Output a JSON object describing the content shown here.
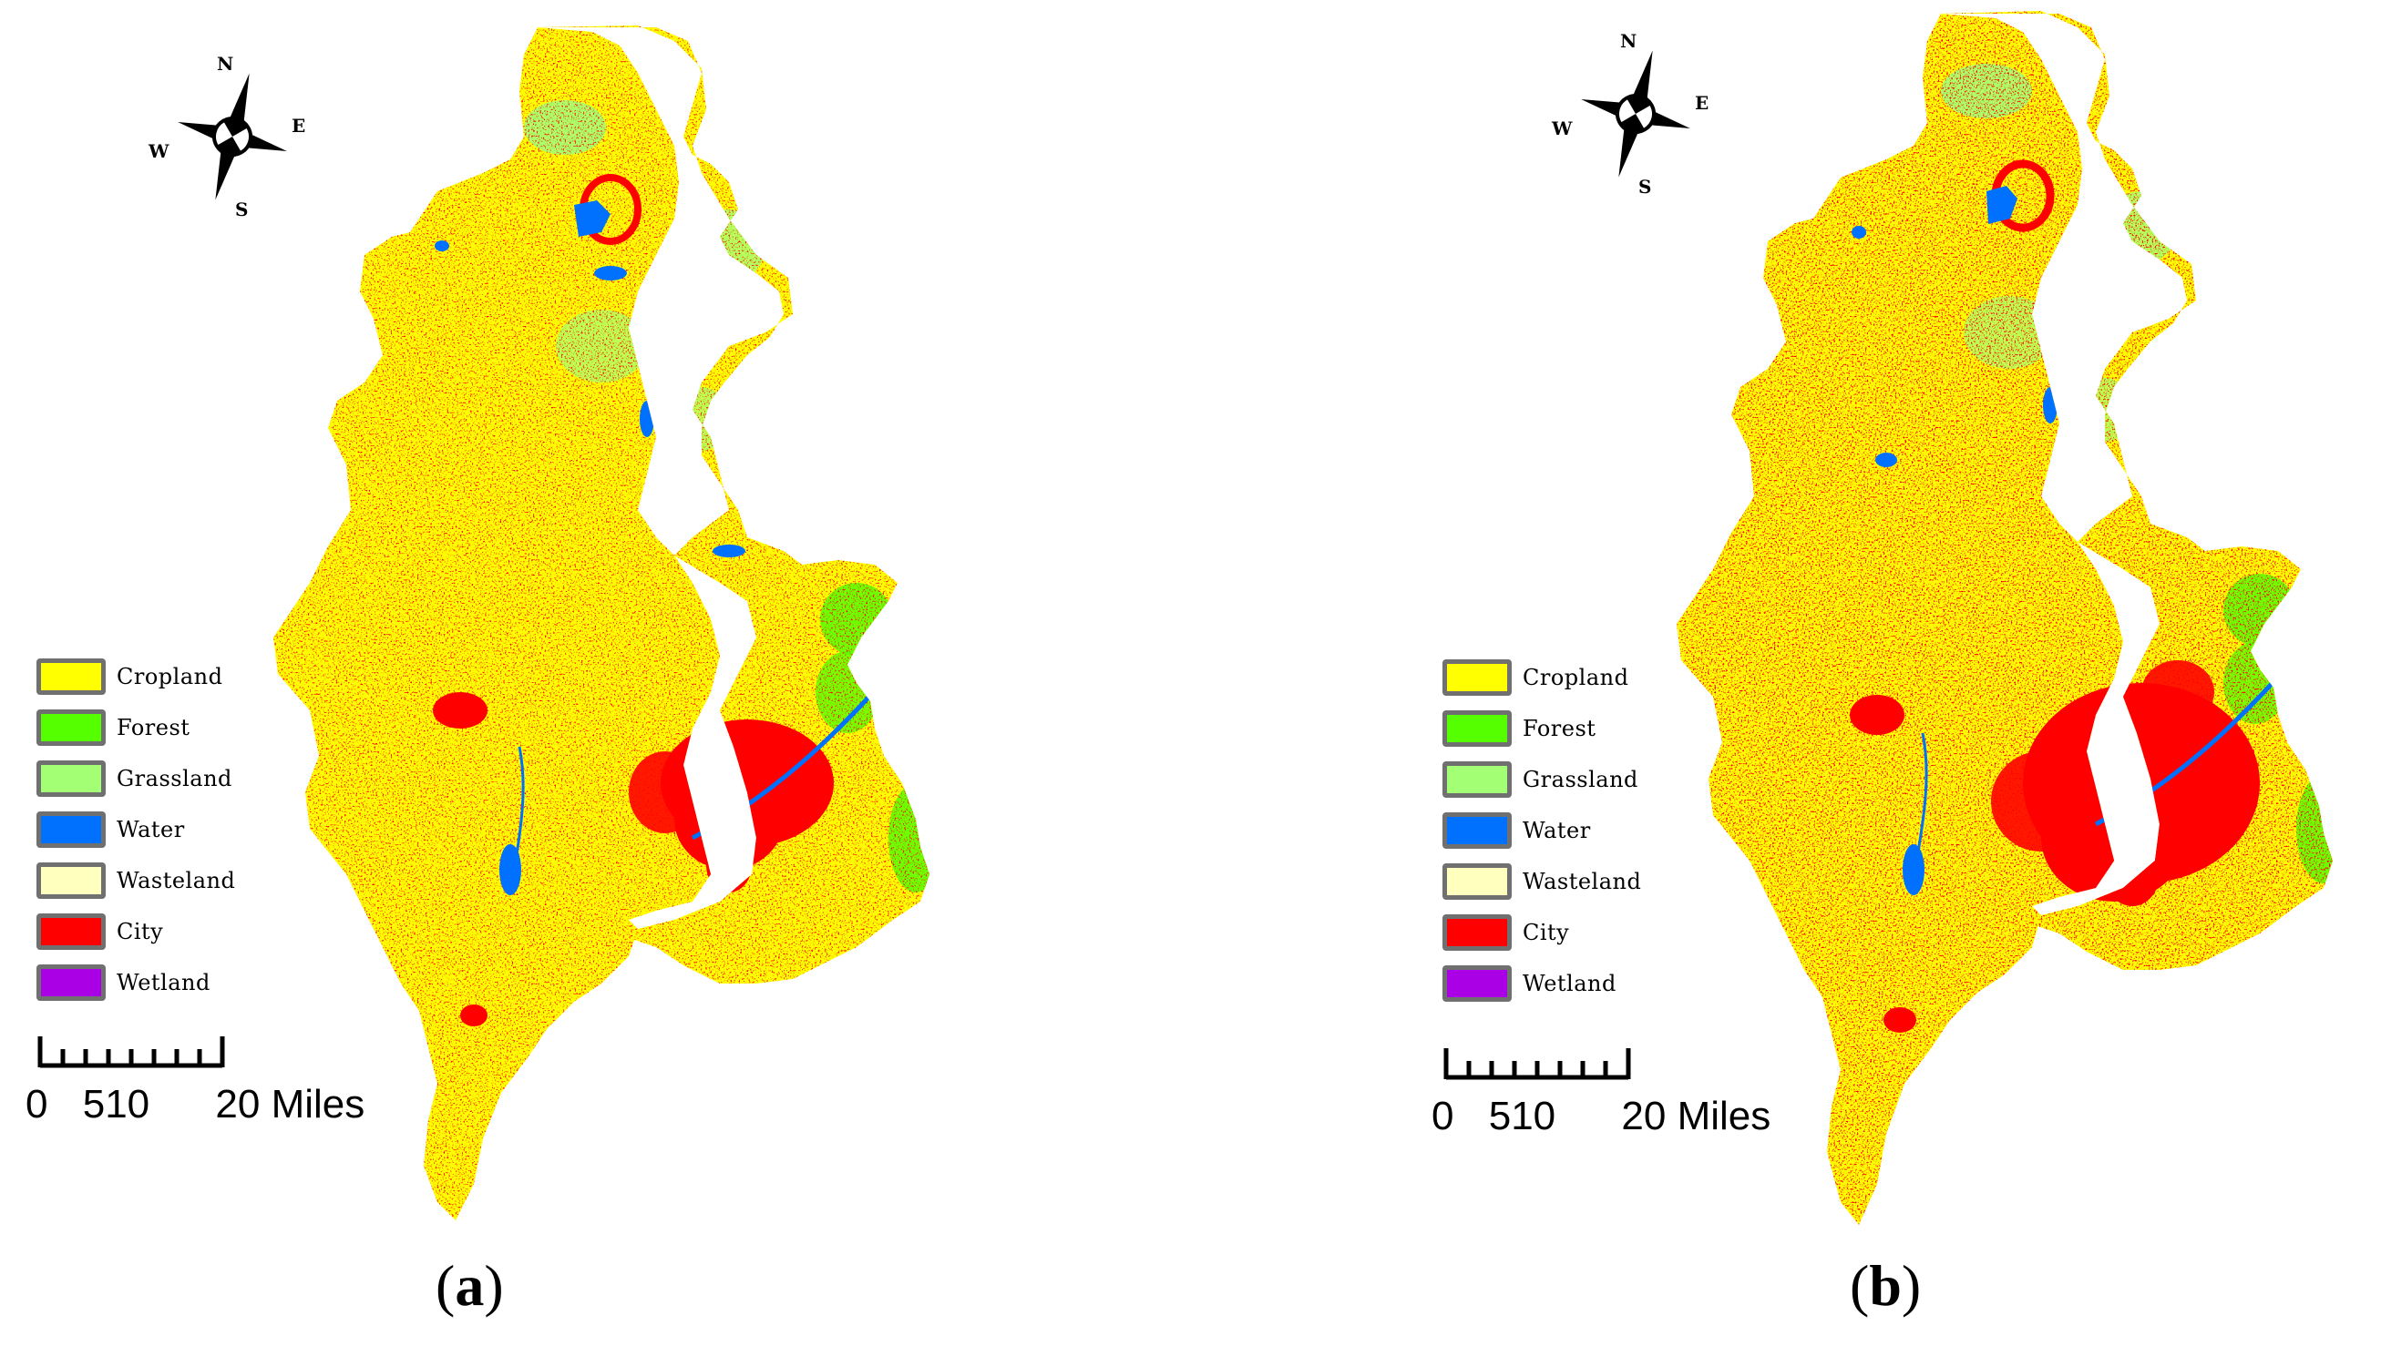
{
  "panels": [
    {
      "id": "a",
      "label_open": "(",
      "label_letter": "a",
      "label_close": ")",
      "compass": {
        "n": "N",
        "s": "S",
        "e": "E",
        "w": "W"
      },
      "legend": [
        {
          "label": "Cropland",
          "color": "#ffff00"
        },
        {
          "label": "Forest",
          "color": "#55ff00"
        },
        {
          "label": "Grassland",
          "color": "#a3ff73"
        },
        {
          "label": "Water",
          "color": "#0070ff"
        },
        {
          "label": "Wasteland",
          "color": "#ffffbe"
        },
        {
          "label": "City",
          "color": "#ff0000"
        },
        {
          "label": "Wetland",
          "color": "#a900e6"
        }
      ],
      "scale": {
        "t0": "0",
        "t5": "5",
        "t10": "10",
        "t20": "20",
        "unit": "Miles"
      }
    },
    {
      "id": "b",
      "label_open": "(",
      "label_letter": "b",
      "label_close": ")",
      "compass": {
        "n": "N",
        "s": "S",
        "e": "E",
        "w": "W"
      },
      "legend": [
        {
          "label": "Cropland",
          "color": "#ffff00"
        },
        {
          "label": "Forest",
          "color": "#55ff00"
        },
        {
          "label": "Grassland",
          "color": "#a3ff73"
        },
        {
          "label": "Water",
          "color": "#0070ff"
        },
        {
          "label": "Wasteland",
          "color": "#ffffbe"
        },
        {
          "label": "City",
          "color": "#ff0000"
        },
        {
          "label": "Wetland",
          "color": "#a900e6"
        }
      ],
      "scale": {
        "t0": "0",
        "t5": "5",
        "t10": "10",
        "t20": "20",
        "unit": "Miles"
      }
    }
  ]
}
